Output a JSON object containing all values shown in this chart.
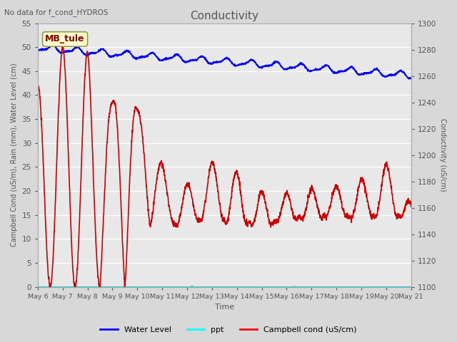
{
  "title": "Conductivity",
  "no_data_text": "No data for f_cond_HYDROS",
  "xlabel": "Time",
  "ylabel_left": "Campbell Cond (uS/m), Rain (mm), Water Level (cm)",
  "ylabel_right": "Conductivity (uS/cm)",
  "ylim_left": [
    0,
    55
  ],
  "ylim_right": [
    1100,
    1300
  ],
  "yticks_left": [
    0,
    5,
    10,
    15,
    20,
    25,
    30,
    35,
    40,
    45,
    50,
    55
  ],
  "yticks_right": [
    1100,
    1120,
    1140,
    1160,
    1180,
    1200,
    1220,
    1240,
    1260,
    1280,
    1300
  ],
  "fig_bg_color": "#d8d8d8",
  "plot_bg_color": "#e8e8e8",
  "grid_color": "white",
  "box_label": "MB_tule",
  "box_face_color": "#ffffcc",
  "box_edge_color": "#999944",
  "box_text_color": "#880000",
  "legend_items": [
    "Water Level",
    "ppt",
    "Campbell cond (uS/cm)"
  ],
  "legend_colors": [
    "blue",
    "cyan",
    "red"
  ],
  "water_level_color": "#0000ff",
  "ppt_color": "#00cccc",
  "campbell_color": "#cc0000",
  "x_start_day": 6,
  "x_end_day": 21,
  "x_ticks": [
    6,
    7,
    8,
    9,
    10,
    11,
    12,
    13,
    14,
    15,
    16,
    17,
    18,
    19,
    20,
    21
  ],
  "x_tick_labels": [
    "May 6",
    "May 7",
    "May 8",
    "May 9",
    "May 10",
    "May 11",
    "May 12",
    "May 13",
    "May 14",
    "May 15",
    "May 16",
    "May 17",
    "May 18",
    "May 19",
    "May 20",
    "May 21"
  ],
  "tick_color": "#555555",
  "label_color": "#555555",
  "title_color": "#555555"
}
